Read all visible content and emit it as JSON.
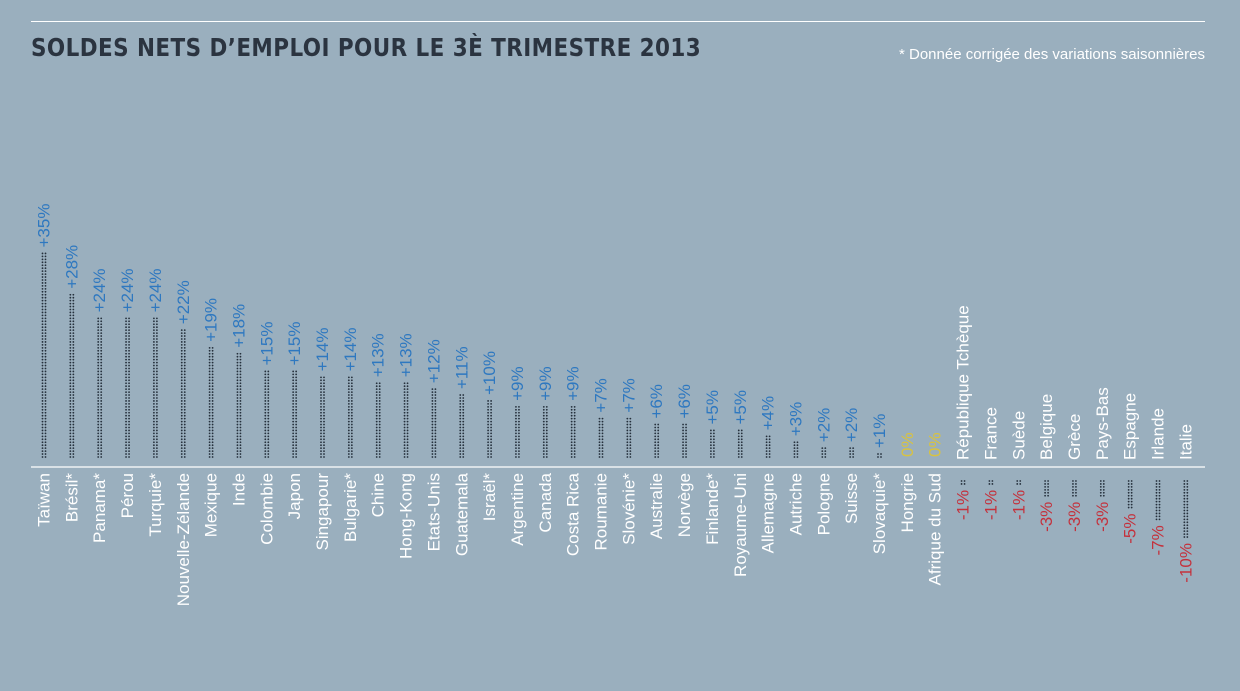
{
  "title": "SOLDES NETS D’EMPLOI POUR LE 3È TRIMESTRE 2013",
  "note": "* Donnée corrigée des variations saisonnières",
  "colors": {
    "background": "#9aafbe",
    "positive": "#2e78c0",
    "zero": "#d9c33f",
    "negative": "#c4313c",
    "dots": "#25303c",
    "labels": "#ffffff",
    "title": "#2b3440"
  },
  "chart_data": {
    "type": "bar",
    "title": "SOLDES NETS D’EMPLOI POUR LE 3È TRIMESTRE 2013",
    "xlabel": "",
    "ylabel": "",
    "grid": false,
    "legend": "none",
    "categories": [
      "Taïwan",
      "Brésil*",
      "Panama*",
      "Pérou",
      "Turquie*",
      "Nouvelle-Zélande",
      "Mexique",
      "Inde",
      "Colombie",
      "Japon",
      "Singapour",
      "Bulgarie*",
      "Chine",
      "Hong-Kong",
      "Etats-Unis",
      "Guatemala",
      "Israël*",
      "Argentine",
      "Canada",
      "Costa Rica",
      "Roumanie",
      "Slovénie*",
      "Australie",
      "Norvège",
      "Finlande*",
      "Royaume-Uni",
      "Allemagne",
      "Autriche",
      "Pologne",
      "Suisse",
      "Slovaquie*",
      "Hongrie",
      "Afrique du Sud",
      "République Tchèque",
      "France",
      "Suède",
      "Belgique",
      "Grèce",
      "Pays-Bas",
      "Espagne",
      "Irlande",
      "Italie"
    ],
    "values": [
      35,
      28,
      24,
      24,
      24,
      22,
      19,
      18,
      15,
      15,
      14,
      14,
      13,
      13,
      12,
      11,
      10,
      9,
      9,
      9,
      7,
      7,
      6,
      6,
      5,
      5,
      4,
      3,
      2,
      2,
      1,
      0,
      0,
      -1,
      -1,
      -1,
      -3,
      -3,
      -3,
      -5,
      -7,
      -10
    ],
    "value_labels": [
      "+35%",
      "+28%",
      "+24%",
      "+24%",
      "+24%",
      "+22%",
      "+19%",
      "+18%",
      "+15%",
      "+15%",
      "+14%",
      "+14%",
      "+13%",
      "+13%",
      "+12%",
      "+11%",
      "+10%",
      "+9%",
      "+9%",
      "+9%",
      "+7%",
      "+7%",
      "+6%",
      "+6%",
      "+5%",
      "+5%",
      "+4%",
      "+3%",
      "+2%",
      "+2%",
      "+1%",
      "0%",
      "0%",
      "-1%",
      "-1%",
      "-1%",
      "-3%",
      "-3%",
      "-3%",
      "-5%",
      "-7%",
      "-10%"
    ],
    "ylim": [
      -10,
      35
    ]
  }
}
